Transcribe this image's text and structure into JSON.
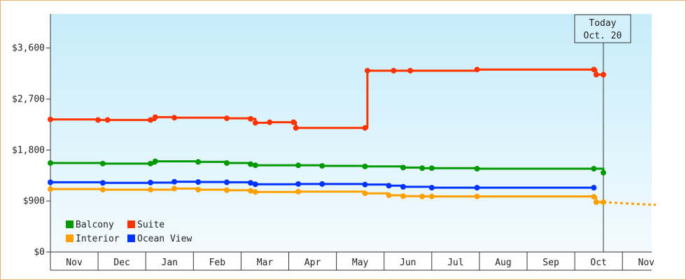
{
  "chart_data": {
    "type": "line",
    "y_ticks": [
      "$0",
      "$900",
      "$1,800",
      "$2,700",
      "$3,600"
    ],
    "y_tick_values": [
      0,
      900,
      1800,
      2700,
      3600
    ],
    "ylim": [
      0,
      4200
    ],
    "x_labels": [
      "Nov",
      "Dec",
      "Jan",
      "Feb",
      "Mar",
      "Apr",
      "May",
      "Jun",
      "Jul",
      "Aug",
      "Sep",
      "Oct",
      "Nov"
    ],
    "grid": false,
    "legend_position": "bottom-left",
    "annotation": {
      "line1": "Today",
      "line2": "Oct. 20",
      "month_index": 11.6
    },
    "series": [
      {
        "name": "Suite",
        "color": "#ff3300",
        "points": [
          [
            0,
            2340
          ],
          [
            1.0,
            2330
          ],
          [
            1.2,
            2330
          ],
          [
            2.1,
            2330
          ],
          [
            2.2,
            2380
          ],
          [
            2.6,
            2370
          ],
          [
            3.7,
            2360
          ],
          [
            4.2,
            2350
          ],
          [
            4.3,
            2280
          ],
          [
            4.6,
            2290
          ],
          [
            5.1,
            2290
          ],
          [
            5.15,
            2190
          ],
          [
            6.6,
            2190
          ],
          [
            6.65,
            3200
          ],
          [
            7.2,
            3200
          ],
          [
            7.55,
            3200
          ],
          [
            8.95,
            3220
          ],
          [
            11.4,
            3220
          ],
          [
            11.45,
            3130
          ],
          [
            11.6,
            3130
          ]
        ]
      },
      {
        "name": "Balcony",
        "color": "#009900",
        "points": [
          [
            0,
            1570
          ],
          [
            1.1,
            1560
          ],
          [
            2.1,
            1560
          ],
          [
            2.2,
            1600
          ],
          [
            3.1,
            1590
          ],
          [
            3.7,
            1570
          ],
          [
            4.2,
            1550
          ],
          [
            4.3,
            1530
          ],
          [
            5.2,
            1530
          ],
          [
            5.7,
            1520
          ],
          [
            6.6,
            1510
          ],
          [
            7.4,
            1490
          ],
          [
            7.8,
            1480
          ],
          [
            8.0,
            1480
          ],
          [
            8.95,
            1470
          ],
          [
            11.4,
            1470
          ],
          [
            11.6,
            1400
          ]
        ]
      },
      {
        "name": "Ocean View",
        "color": "#0033ff",
        "points": [
          [
            0,
            1230
          ],
          [
            1.1,
            1220
          ],
          [
            2.1,
            1225
          ],
          [
            2.6,
            1240
          ],
          [
            3.1,
            1235
          ],
          [
            3.7,
            1230
          ],
          [
            4.2,
            1220
          ],
          [
            4.3,
            1195
          ],
          [
            5.2,
            1200
          ],
          [
            5.7,
            1200
          ],
          [
            6.6,
            1190
          ],
          [
            7.1,
            1170
          ],
          [
            7.4,
            1150
          ],
          [
            8.0,
            1135
          ],
          [
            8.95,
            1135
          ],
          [
            11.4,
            1135
          ]
        ]
      },
      {
        "name": "Interior",
        "color": "#ffa000",
        "points": [
          [
            0,
            1110
          ],
          [
            1.1,
            1100
          ],
          [
            2.1,
            1100
          ],
          [
            2.6,
            1120
          ],
          [
            3.1,
            1100
          ],
          [
            3.7,
            1090
          ],
          [
            4.2,
            1080
          ],
          [
            4.3,
            1060
          ],
          [
            5.2,
            1065
          ],
          [
            6.6,
            1035
          ],
          [
            7.1,
            1000
          ],
          [
            7.4,
            985
          ],
          [
            7.8,
            980
          ],
          [
            8.0,
            980
          ],
          [
            8.95,
            980
          ],
          [
            11.4,
            975
          ],
          [
            11.45,
            880
          ],
          [
            11.6,
            880
          ]
        ],
        "projection": [
          [
            11.6,
            880
          ],
          [
            12.7,
            830
          ]
        ]
      }
    ]
  }
}
